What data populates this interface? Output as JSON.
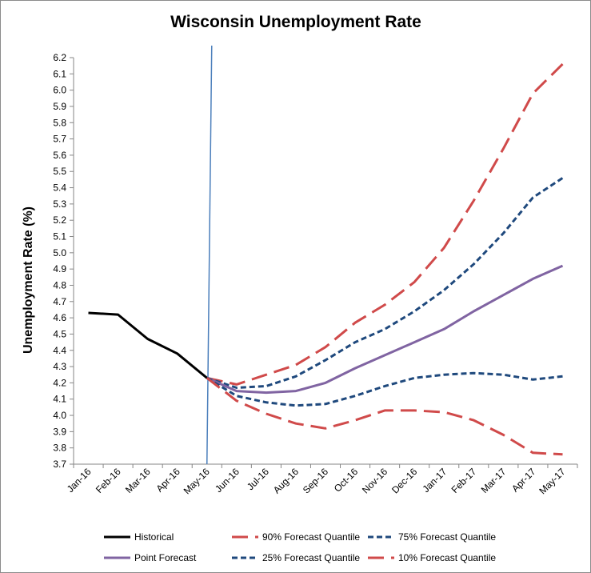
{
  "chart_data": {
    "type": "line",
    "title": "Wisconsin Unemployment Rate",
    "xlabel": "",
    "ylabel": "Unemployment Rate (%)",
    "ylim": [
      3.7,
      6.2
    ],
    "ytick_step": 0.1,
    "categories": [
      "Jan-16",
      "Feb-16",
      "Mar-16",
      "Apr-16",
      "May-16",
      "Jun-16",
      "Jul-16",
      "Aug-16",
      "Sep-16",
      "Oct-16",
      "Nov-16",
      "Dec-16",
      "Jan-17",
      "Feb-17",
      "Mar-17",
      "Apr-17",
      "May-17"
    ],
    "vertical_marker_at": "May-16",
    "vertical_marker_color": "#4a7ebb",
    "legend_position": "bottom",
    "series": [
      {
        "name": "Historical",
        "color": "#000000",
        "dash": "solid",
        "values": [
          4.63,
          4.62,
          4.47,
          4.38,
          4.23,
          null,
          null,
          null,
          null,
          null,
          null,
          null,
          null,
          null,
          null,
          null,
          null
        ]
      },
      {
        "name": "90% Forecast Quantile",
        "color": "#d04a4a",
        "dash": "long-dash",
        "values": [
          null,
          null,
          null,
          null,
          4.23,
          4.19,
          4.25,
          4.31,
          4.42,
          4.57,
          4.68,
          4.82,
          5.03,
          5.32,
          5.64,
          5.98,
          6.16
        ]
      },
      {
        "name": "75% Forecast Quantile",
        "color": "#1f497d",
        "dash": "short-dash",
        "values": [
          null,
          null,
          null,
          null,
          4.23,
          4.17,
          4.18,
          4.24,
          4.34,
          4.45,
          4.53,
          4.64,
          4.77,
          4.93,
          5.12,
          5.34,
          5.46
        ]
      },
      {
        "name": "Point Forecast",
        "color": "#8064a2",
        "dash": "solid",
        "values": [
          null,
          null,
          null,
          null,
          4.23,
          4.15,
          4.14,
          4.15,
          4.2,
          4.29,
          4.37,
          4.45,
          4.53,
          4.64,
          4.74,
          4.84,
          4.92
        ]
      },
      {
        "name": "25% Forecast Quantile",
        "color": "#1f497d",
        "dash": "short-dash",
        "values": [
          null,
          null,
          null,
          null,
          4.23,
          4.12,
          4.08,
          4.06,
          4.07,
          4.12,
          4.18,
          4.23,
          4.25,
          4.26,
          4.25,
          4.22,
          4.24
        ]
      },
      {
        "name": "10% Forecast Quantile",
        "color": "#d04a4a",
        "dash": "long-dash",
        "values": [
          null,
          null,
          null,
          null,
          4.23,
          4.09,
          4.01,
          3.95,
          3.92,
          3.97,
          4.03,
          4.03,
          4.02,
          3.97,
          3.88,
          3.77,
          3.76
        ]
      }
    ],
    "legend_rows": [
      [
        "Historical",
        "90% Forecast Quantile",
        "75% Forecast Quantile"
      ],
      [
        "Point Forecast",
        "25% Forecast Quantile",
        "10% Forecast Quantile"
      ]
    ]
  }
}
